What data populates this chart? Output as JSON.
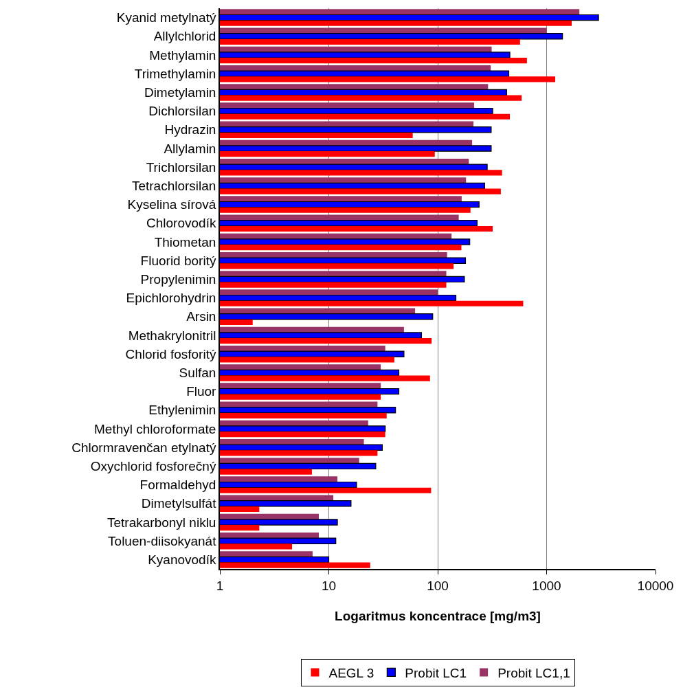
{
  "chart_data": {
    "type": "bar",
    "orientation": "horizontal",
    "xlabel": "Logaritmus koncentrace [mg/m3]",
    "log": "x",
    "xlim": [
      1,
      10000
    ],
    "xticks": [
      1,
      10,
      100,
      1000,
      10000
    ],
    "grid": "x",
    "legend": "bottom",
    "categories": [
      "Kyanid metylnatý",
      "Allylchlorid",
      "Methylamin",
      "Trimethylamin",
      "Dimetylamin",
      "Dichlorsilan",
      "Hydrazin",
      "Allylamin",
      "Trichlorsilan",
      "Tetrachlorsilan",
      "Kyselina sírová",
      "Chlorovodík",
      "Thiometan",
      "Fluorid boritý",
      "Propylenimin",
      "Epichlorohydrin",
      "Arsin",
      "Methakrylonitril",
      "Chlorid fosforitý",
      "Sulfan",
      "Fluor",
      "Ethylenimin",
      "Methyl chloroformate",
      "Chlormravenčan etylnatý",
      "Oxychlorid fosforečný",
      "Formaldehyd",
      "Dimetylsulfát",
      "Tetrakarbonyl niklu",
      "Toluen-diisokyanát",
      "Kyanovodík"
    ],
    "series": [
      {
        "name": "AEGL 3",
        "color": "#ff0000",
        "values": [
          1700,
          570,
          660,
          1200,
          590,
          460,
          59,
          94,
          390,
          380,
          200,
          320,
          165,
          140,
          120,
          610,
          2.0,
          88,
          40,
          85,
          30,
          34,
          33,
          28,
          7.0,
          87,
          2.3,
          2.3,
          4.6,
          24
        ]
      },
      {
        "name": "Probit LC1",
        "color": "#0000ff",
        "values": [
          3000,
          1400,
          460,
          450,
          430,
          320,
          310,
          310,
          285,
          270,
          240,
          230,
          197,
          180,
          176,
          147,
          90,
          71,
          49,
          44,
          44,
          41,
          33,
          31,
          27,
          18,
          16,
          12,
          11.6,
          10
        ]
      },
      {
        "name": "Probit LC1,1",
        "color": "#993366",
        "values": [
          2000,
          1000,
          313,
          307,
          290,
          216,
          213,
          207,
          193,
          182,
          166,
          156,
          134,
          122,
          120,
          100,
          62,
          49,
          33,
          30,
          30,
          28,
          23,
          21,
          19,
          12,
          11,
          8.1,
          8.1,
          7.1
        ]
      }
    ]
  }
}
